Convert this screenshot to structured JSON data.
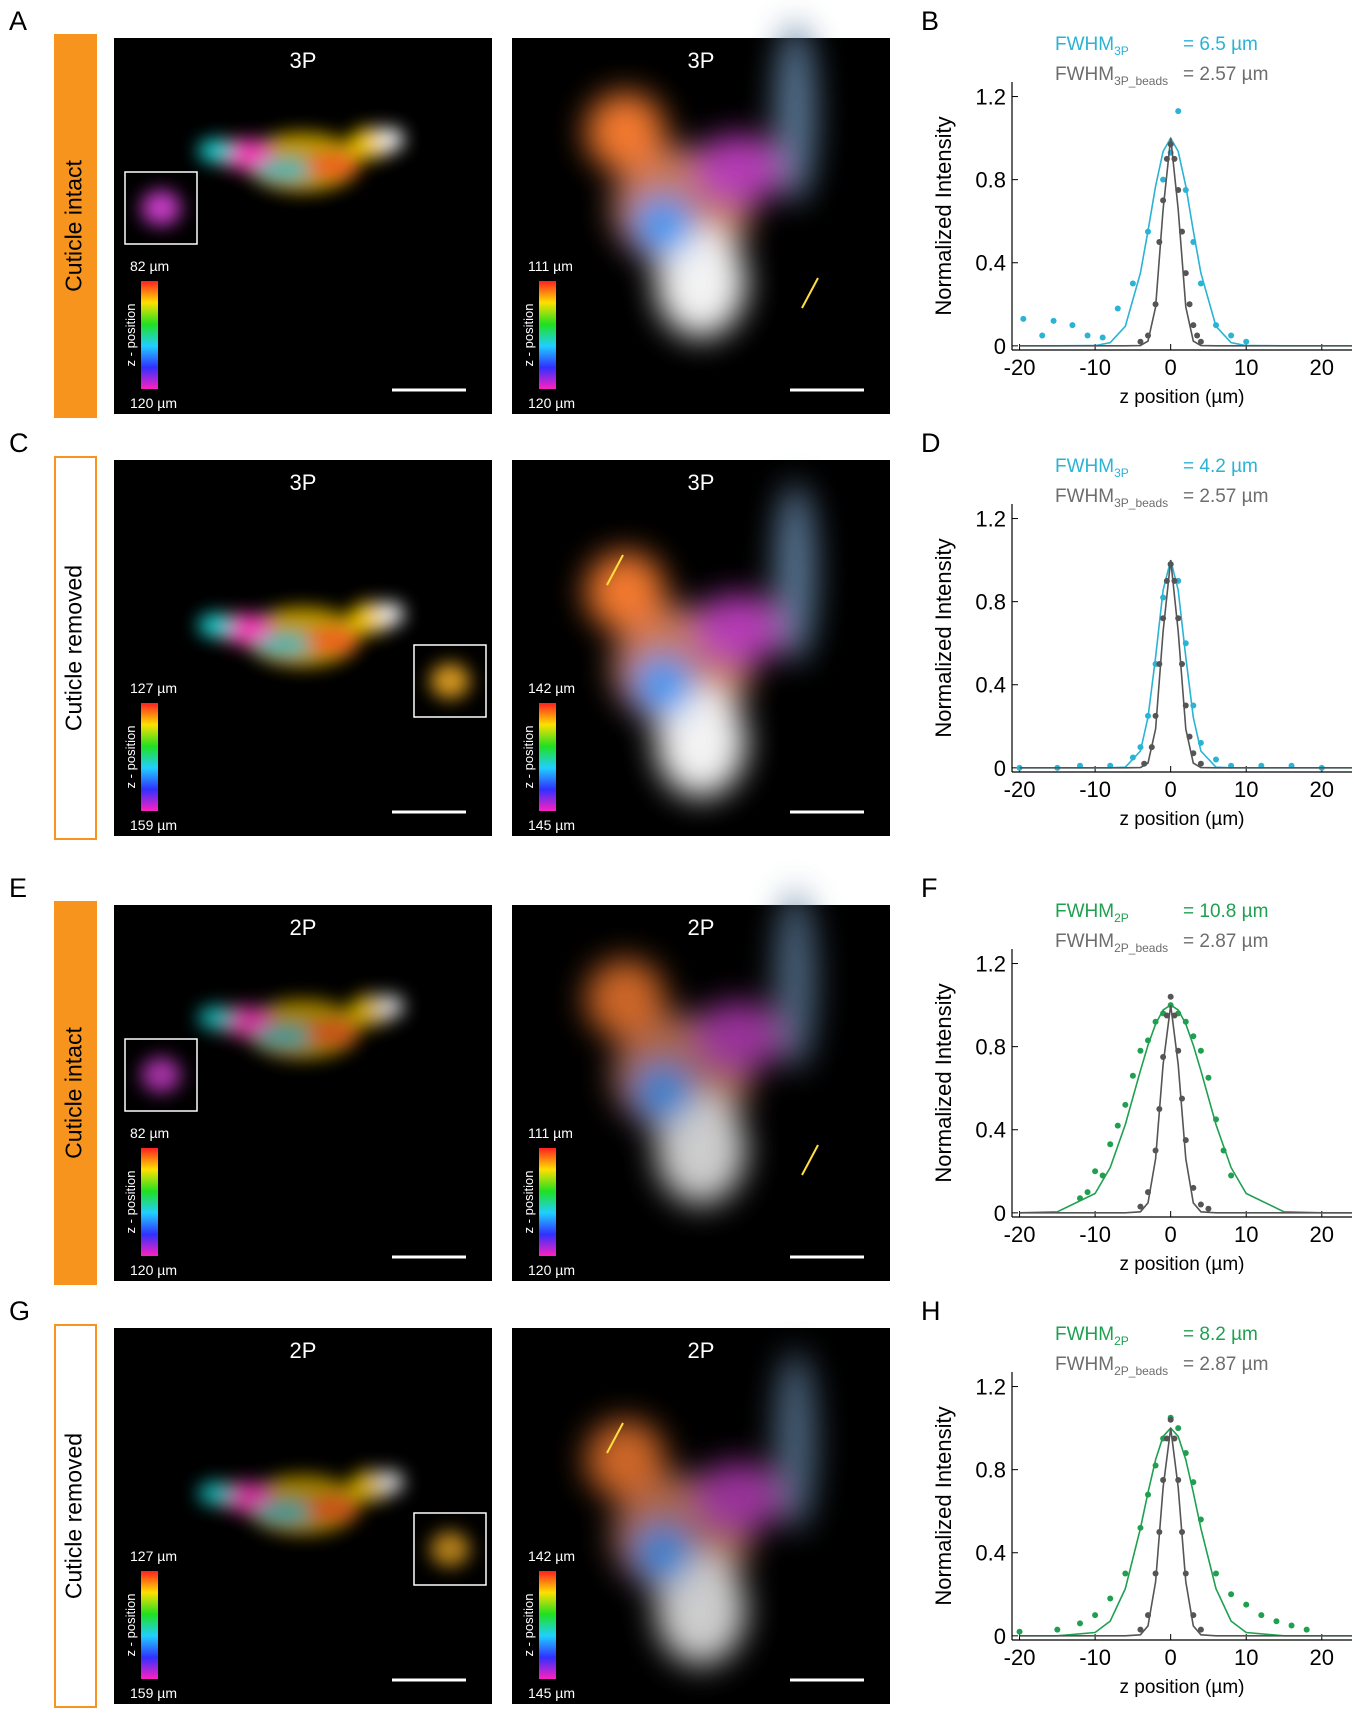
{
  "rows": [
    {
      "letter": "A",
      "condition": "Cuticle intact",
      "filled": true,
      "images": [
        {
          "title": "3P",
          "z_top": "82 µm",
          "z_bottom": "120 µm",
          "z_label": "z - position"
        },
        {
          "title": "3P",
          "z_top": "111 µm",
          "z_bottom": "120 µm",
          "z_label": "z - position"
        }
      ]
    },
    {
      "letter": "C",
      "condition": "Cuticle removed",
      "filled": false,
      "images": [
        {
          "title": "3P",
          "z_top": "127 µm",
          "z_bottom": "159 µm",
          "z_label": "z - position"
        },
        {
          "title": "3P",
          "z_top": "142 µm",
          "z_bottom": "145 µm",
          "z_label": "z - position"
        }
      ]
    },
    {
      "letter": "E",
      "condition": "Cuticle intact",
      "filled": true,
      "images": [
        {
          "title": "2P",
          "z_top": "82 µm",
          "z_bottom": "120 µm",
          "z_label": "z - position"
        },
        {
          "title": "2P",
          "z_top": "111 µm",
          "z_bottom": "120 µm",
          "z_label": "z - position"
        }
      ]
    },
    {
      "letter": "G",
      "condition": "Cuticle removed",
      "filled": false,
      "images": [
        {
          "title": "2P",
          "z_top": "127 µm",
          "z_bottom": "159 µm",
          "z_label": "z - position"
        },
        {
          "title": "2P",
          "z_top": "142 µm",
          "z_bottom": "145 µm",
          "z_label": "z - position"
        }
      ]
    }
  ],
  "chart_data": [
    {
      "type": "scatter",
      "letter": "B",
      "x_label": "z position (µm)",
      "y_label": "Normalized Intensity",
      "xlim": [
        -21,
        24
      ],
      "xticks": [
        -20,
        -10,
        0,
        10,
        20
      ],
      "ylim": [
        -0.02,
        1.27
      ],
      "yticks": [
        0,
        0.4,
        0.8,
        1.2
      ],
      "annotations": [
        {
          "label": "FWHM",
          "subscript": "3P",
          "text": "= 6.5 µm",
          "color": "#2ab3d4"
        },
        {
          "label": "FWHM",
          "subscript": "3P_beads",
          "text": "= 2.57 µm",
          "color": "#6d6d6d"
        }
      ],
      "series": [
        {
          "mode": "line",
          "color": "#2ab3d4",
          "x": [
            -20,
            -15,
            -10,
            -8,
            -6,
            -4,
            -3,
            -2,
            -1,
            0,
            1,
            2,
            3,
            4,
            6,
            8,
            10,
            15,
            20,
            24
          ],
          "values": [
            0,
            0,
            0.001,
            0.015,
            0.094,
            0.35,
            0.554,
            0.769,
            0.936,
            1,
            0.936,
            0.769,
            0.554,
            0.35,
            0.094,
            0.015,
            0.001,
            0,
            0,
            0
          ]
        },
        {
          "mode": "markers",
          "color": "#2ab3d4",
          "x": [
            -19.5,
            -17,
            -15.5,
            -13,
            -11,
            -9,
            -7,
            -5,
            -3,
            -1,
            0,
            1,
            2,
            3,
            4,
            6,
            8,
            10
          ],
          "values": [
            0.13,
            0.05,
            0.12,
            0.1,
            0.05,
            0.04,
            0.18,
            0.3,
            0.55,
            0.8,
            0.93,
            1.13,
            0.75,
            0.5,
            0.3,
            0.1,
            0.05,
            0.02
          ]
        },
        {
          "mode": "line",
          "color": "#555555",
          "x": [
            -20,
            -15,
            -10,
            -8,
            -6,
            -4,
            -3,
            -2,
            -1,
            0,
            1,
            2,
            3,
            4,
            6,
            8,
            10,
            15,
            20,
            24
          ],
          "values": [
            0,
            0,
            0,
            0,
            0,
            0.001,
            0.023,
            0.187,
            0.657,
            1,
            0.657,
            0.187,
            0.023,
            0.001,
            0,
            0,
            0,
            0,
            0,
            0
          ]
        },
        {
          "mode": "markers",
          "color": "#555555",
          "x": [
            -4,
            -3,
            -2,
            -1.5,
            -1,
            -0.5,
            0,
            0.5,
            1,
            1.5,
            2,
            2.5,
            3,
            3.5,
            4
          ],
          "values": [
            0.02,
            0.05,
            0.2,
            0.5,
            0.7,
            0.9,
            0.97,
            0.9,
            0.75,
            0.55,
            0.35,
            0.2,
            0.1,
            0.05,
            0.02
          ]
        }
      ]
    },
    {
      "type": "scatter",
      "letter": "D",
      "x_label": "z position (µm)",
      "y_label": "Normalized Intensity",
      "xlim": [
        -21,
        24
      ],
      "xticks": [
        -20,
        -10,
        0,
        10,
        20
      ],
      "ylim": [
        -0.02,
        1.27
      ],
      "yticks": [
        0,
        0.4,
        0.8,
        1.2
      ],
      "annotations": [
        {
          "label": "FWHM",
          "subscript": "3P",
          "text": "= 4.2 µm",
          "color": "#2ab3d4"
        },
        {
          "label": "FWHM",
          "subscript": "3P_beads",
          "text": "= 2.57 µm",
          "color": "#6d6d6d"
        }
      ],
      "series": [
        {
          "mode": "line",
          "color": "#2ab3d4",
          "x": [
            -20,
            -15,
            -10,
            -8,
            -6,
            -4,
            -3,
            -2,
            -1,
            0,
            1,
            2,
            3,
            4,
            6,
            8,
            10,
            15,
            20,
            24
          ],
          "values": [
            0,
            0,
            0,
            0,
            0.003,
            0.081,
            0.243,
            0.533,
            0.855,
            1,
            0.855,
            0.533,
            0.243,
            0.081,
            0.003,
            0,
            0,
            0,
            0,
            0
          ]
        },
        {
          "mode": "markers",
          "color": "#2ab3d4",
          "x": [
            -20,
            -15,
            -12,
            -8,
            -5,
            -4,
            -3,
            -2,
            -1,
            0,
            1,
            2,
            3,
            4,
            6,
            8,
            12,
            16,
            20
          ],
          "values": [
            0,
            0,
            0.01,
            0.01,
            0.05,
            0.1,
            0.25,
            0.5,
            0.82,
            0.98,
            0.9,
            0.6,
            0.3,
            0.12,
            0.04,
            0.01,
            0.01,
            0.01,
            0
          ]
        },
        {
          "mode": "line",
          "color": "#555555",
          "x": [
            -20,
            -15,
            -10,
            -8,
            -6,
            -4,
            -3,
            -2,
            -1,
            0,
            1,
            2,
            3,
            4,
            6,
            8,
            10,
            15,
            20,
            24
          ],
          "values": [
            0,
            0,
            0,
            0,
            0,
            0.001,
            0.023,
            0.187,
            0.657,
            1,
            0.657,
            0.187,
            0.023,
            0.001,
            0,
            0,
            0,
            0,
            0,
            0
          ]
        },
        {
          "mode": "markers",
          "color": "#555555",
          "x": [
            -3.5,
            -2.5,
            -2,
            -1.5,
            -1,
            -0.5,
            0,
            0.5,
            1,
            1.5,
            2,
            2.5,
            3,
            4
          ],
          "values": [
            0.02,
            0.1,
            0.25,
            0.5,
            0.72,
            0.9,
            0.98,
            0.9,
            0.72,
            0.5,
            0.3,
            0.15,
            0.07,
            0.02
          ]
        }
      ]
    },
    {
      "type": "scatter",
      "letter": "F",
      "x_label": "z position (µm)",
      "y_label": "Normalized Intensity",
      "xlim": [
        -21,
        24
      ],
      "xticks": [
        -20,
        -10,
        0,
        10,
        20
      ],
      "ylim": [
        -0.02,
        1.27
      ],
      "yticks": [
        0,
        0.4,
        0.8,
        1.2
      ],
      "annotations": [
        {
          "label": "FWHM",
          "subscript": "2P",
          "text": "= 10.8 µm",
          "color": "#1fa050"
        },
        {
          "label": "FWHM",
          "subscript": "2P_beads",
          "text": "= 2.87 µm",
          "color": "#6d6d6d"
        }
      ],
      "series": [
        {
          "mode": "line",
          "color": "#1fa050",
          "x": [
            -20,
            -15,
            -10,
            -8,
            -6,
            -4,
            -3,
            -2,
            -1,
            0,
            1,
            2,
            3,
            4,
            6,
            8,
            10,
            15,
            20,
            24
          ],
          "values": [
            0,
            0.005,
            0.093,
            0.218,
            0.425,
            0.684,
            0.807,
            0.909,
            0.977,
            1,
            0.977,
            0.909,
            0.807,
            0.684,
            0.425,
            0.218,
            0.093,
            0.005,
            0,
            0
          ]
        },
        {
          "mode": "markers",
          "color": "#1fa050",
          "x": [
            -12,
            -11,
            -10,
            -9,
            -8,
            -7,
            -6,
            -5,
            -4,
            -3,
            -2,
            -1,
            0,
            1,
            2,
            3,
            4,
            5,
            6,
            7,
            8
          ],
          "values": [
            0.07,
            0.1,
            0.2,
            0.18,
            0.33,
            0.42,
            0.52,
            0.66,
            0.78,
            0.83,
            0.92,
            0.96,
            1.0,
            0.96,
            0.92,
            0.85,
            0.78,
            0.65,
            0.45,
            0.3,
            0.18
          ]
        },
        {
          "mode": "line",
          "color": "#555555",
          "x": [
            -20,
            -15,
            -10,
            -8,
            -6,
            -4,
            -3,
            -2,
            -1,
            0,
            1,
            2,
            3,
            4,
            6,
            8,
            10,
            15,
            20,
            24
          ],
          "values": [
            0,
            0,
            0,
            0,
            0,
            0.005,
            0.048,
            0.26,
            0.714,
            1,
            0.714,
            0.26,
            0.048,
            0.005,
            0,
            0,
            0,
            0,
            0,
            0
          ]
        },
        {
          "mode": "markers",
          "color": "#555555",
          "x": [
            -4,
            -3,
            -2,
            -1.5,
            -1,
            -0.5,
            0,
            0.5,
            1,
            1.5,
            2,
            3,
            4,
            5
          ],
          "values": [
            0.03,
            0.1,
            0.3,
            0.5,
            0.75,
            0.95,
            1.04,
            0.95,
            0.78,
            0.55,
            0.35,
            0.12,
            0.04,
            0.02
          ]
        }
      ]
    },
    {
      "type": "scatter",
      "letter": "H",
      "x_label": "z position (µm)",
      "y_label": "Normalized Intensity",
      "xlim": [
        -21,
        24
      ],
      "xticks": [
        -20,
        -10,
        0,
        10,
        20
      ],
      "ylim": [
        -0.02,
        1.27
      ],
      "yticks": [
        0,
        0.4,
        0.8,
        1.2
      ],
      "annotations": [
        {
          "label": "FWHM",
          "subscript": "2P",
          "text": "= 8.2 µm",
          "color": "#1fa050"
        },
        {
          "label": "FWHM",
          "subscript": "2P_beads",
          "text": "= 2.87 µm",
          "color": "#6d6d6d"
        }
      ],
      "series": [
        {
          "mode": "line",
          "color": "#1fa050",
          "x": [
            -20,
            -15,
            -10,
            -8,
            -6,
            -4,
            -3,
            -2,
            -1,
            0,
            1,
            2,
            3,
            4,
            6,
            8,
            10,
            15,
            20,
            24
          ],
          "values": [
            0,
            0,
            0.016,
            0.071,
            0.227,
            0.517,
            0.69,
            0.848,
            0.96,
            1,
            0.96,
            0.848,
            0.69,
            0.517,
            0.227,
            0.071,
            0.016,
            0,
            0,
            0
          ]
        },
        {
          "mode": "markers",
          "color": "#1fa050",
          "x": [
            -20,
            -15,
            -12,
            -10,
            -8,
            -6,
            -4,
            -3,
            -2,
            -1,
            0,
            1,
            2,
            3,
            4,
            6,
            8,
            10,
            12,
            14,
            16,
            18
          ],
          "values": [
            0.02,
            0.03,
            0.06,
            0.1,
            0.18,
            0.3,
            0.52,
            0.68,
            0.82,
            0.95,
            1.05,
            1.0,
            0.88,
            0.74,
            0.56,
            0.3,
            0.2,
            0.15,
            0.1,
            0.07,
            0.05,
            0.03
          ]
        },
        {
          "mode": "line",
          "color": "#555555",
          "x": [
            -20,
            -15,
            -10,
            -8,
            -6,
            -4,
            -3,
            -2,
            -1,
            0,
            1,
            2,
            3,
            4,
            6,
            8,
            10,
            15,
            20,
            24
          ],
          "values": [
            0,
            0,
            0,
            0,
            0,
            0.005,
            0.048,
            0.26,
            0.714,
            1,
            0.714,
            0.26,
            0.048,
            0.005,
            0,
            0,
            0,
            0,
            0,
            0
          ]
        },
        {
          "mode": "markers",
          "color": "#555555",
          "x": [
            -4,
            -3,
            -2,
            -1.5,
            -1,
            -0.5,
            0,
            0.5,
            1,
            1.5,
            2,
            3,
            4
          ],
          "values": [
            0.03,
            0.1,
            0.3,
            0.5,
            0.75,
            0.95,
            1.04,
            0.95,
            0.75,
            0.5,
            0.3,
            0.1,
            0.03
          ]
        }
      ]
    }
  ]
}
